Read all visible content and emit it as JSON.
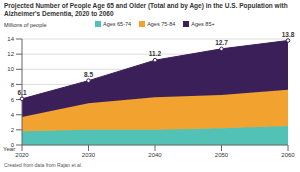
{
  "chart_data": {
    "type": "area",
    "title": "Projected Number of People Age 65 and Older (Total and by Age) in the U.S. Population with Alzheimer's Dementia, 2020 to 2060",
    "ylabel": "Millions of people",
    "xlabel": "Year",
    "footnote": "Created from data from Rajan et al.",
    "x": [
      2020,
      2030,
      2040,
      2050,
      2060
    ],
    "series": [
      {
        "name": "Ages 65-74",
        "color": "#52c2b6",
        "values": [
          1.8,
          2.0,
          2.0,
          2.2,
          2.5
        ]
      },
      {
        "name": "Ages 75-84",
        "color": "#f2a22e",
        "values": [
          1.9,
          3.5,
          4.3,
          4.4,
          4.8
        ]
      },
      {
        "name": "Ages 85+",
        "color": "#3b1f58",
        "values": [
          2.4,
          3.0,
          4.9,
          6.1,
          6.5
        ]
      }
    ],
    "totals": [
      6.1,
      8.5,
      11.2,
      12.7,
      13.8
    ],
    "xlim": [
      2020,
      2060
    ],
    "xticks": [
      2020,
      2030,
      2040,
      2050,
      2060
    ],
    "ylim": [
      0,
      14
    ],
    "yticks": [
      0,
      2,
      4,
      6,
      8,
      10,
      12,
      14
    ],
    "stacked": true,
    "grid": true
  }
}
